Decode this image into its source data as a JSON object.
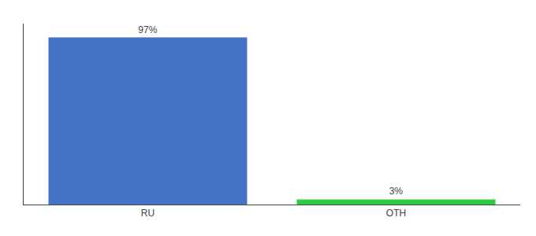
{
  "chart_data": {
    "type": "bar",
    "categories": [
      "RU",
      "OTH"
    ],
    "values": [
      97,
      3
    ],
    "value_labels": [
      "97%",
      "3%"
    ],
    "colors": [
      "#4472c4",
      "#2ecc40"
    ],
    "ylim": [
      0,
      105
    ],
    "data_labels": true,
    "tick_labels": "x",
    "grid": false
  }
}
